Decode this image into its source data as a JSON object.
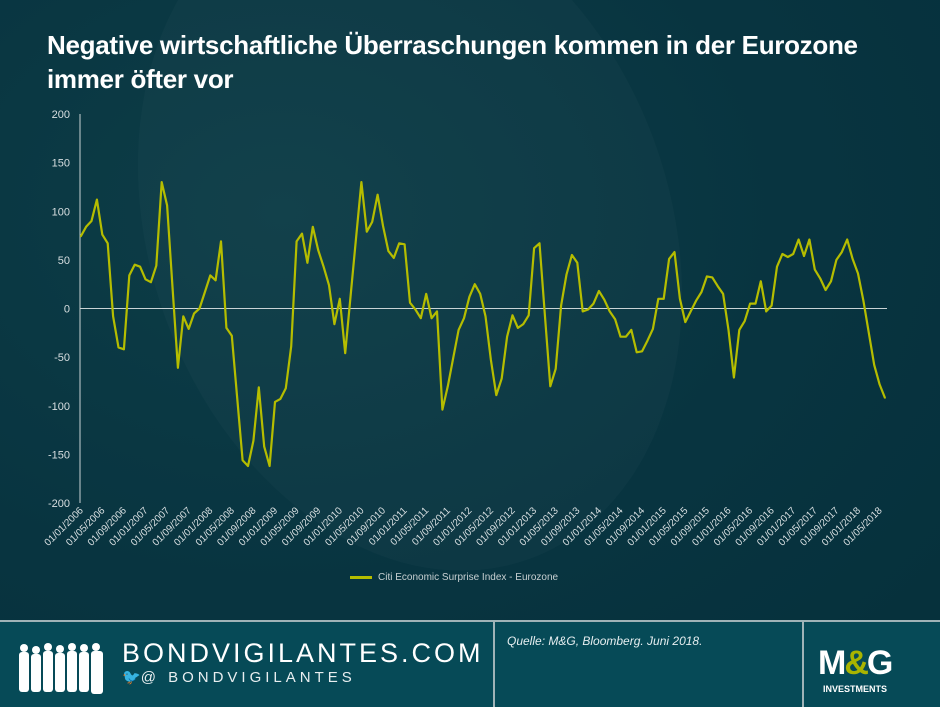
{
  "title": "Negative wirtschaftliche Überraschungen kommen in der Eurozone immer öfter vor",
  "chart_data": {
    "type": "line",
    "title": "Negative wirtschaftliche Überraschungen kommen in der Eurozone immer öfter vor",
    "xlabel": "",
    "ylabel": "",
    "ylim": [
      -200,
      200
    ],
    "y_ticks": [
      "200",
      "150",
      "100",
      "50",
      "0",
      "-50",
      "-100",
      "-150",
      "-200"
    ],
    "x_tick_labels": [
      "01/01/2006",
      "01/05/2006",
      "01/09/2006",
      "01/01/2007",
      "01/05/2007",
      "01/09/2007",
      "01/01/2008",
      "01/05/2008",
      "01/09/2008",
      "01/01/2009",
      "01/05/2009",
      "01/09/2009",
      "01/01/2010",
      "01/05/2010",
      "01/09/2010",
      "01/01/2011",
      "01/05/2011",
      "01/09/2011",
      "01/01/2012",
      "01/05/2012",
      "01/09/2012",
      "01/01/2013",
      "01/05/2013",
      "01/09/2013",
      "01/01/2014",
      "01/05/2014",
      "01/09/2014",
      "01/01/2015",
      "01/05/2015",
      "01/09/2015",
      "01/01/2016",
      "01/05/2016",
      "01/09/2016",
      "01/01/2017",
      "01/05/2017",
      "01/09/2017",
      "01/01/2018",
      "01/05/2018"
    ],
    "grid": false,
    "legend": "bottom",
    "line_color": "#b5bd00",
    "series": [
      {
        "name": "Citi Economic Surprise Index - Eurozone",
        "x": [
          "2006-01",
          "2006-02",
          "2006-03",
          "2006-04",
          "2006-05",
          "2006-06",
          "2006-07",
          "2006-08",
          "2006-09",
          "2006-10",
          "2006-11",
          "2006-12",
          "2007-01",
          "2007-02",
          "2007-03",
          "2007-04",
          "2007-05",
          "2007-06",
          "2007-07",
          "2007-08",
          "2007-09",
          "2007-10",
          "2007-11",
          "2007-12",
          "2008-01",
          "2008-02",
          "2008-03",
          "2008-04",
          "2008-05",
          "2008-06",
          "2008-07",
          "2008-08",
          "2008-09",
          "2008-10",
          "2008-11",
          "2008-12",
          "2009-01",
          "2009-02",
          "2009-03",
          "2009-04",
          "2009-05",
          "2009-06",
          "2009-07",
          "2009-08",
          "2009-09",
          "2009-10",
          "2009-11",
          "2009-12",
          "2010-01",
          "2010-02",
          "2010-03",
          "2010-04",
          "2010-05",
          "2010-06",
          "2010-07",
          "2010-08",
          "2010-09",
          "2010-10",
          "2010-11",
          "2010-12",
          "2011-01",
          "2011-02",
          "2011-03",
          "2011-04",
          "2011-05",
          "2011-06",
          "2011-07",
          "2011-08",
          "2011-09",
          "2011-10",
          "2011-11",
          "2011-12",
          "2012-01",
          "2012-02",
          "2012-03",
          "2012-04",
          "2012-05",
          "2012-06",
          "2012-07",
          "2012-08",
          "2012-09",
          "2012-10",
          "2012-11",
          "2012-12",
          "2013-01",
          "2013-02",
          "2013-03",
          "2013-04",
          "2013-05",
          "2013-06",
          "2013-07",
          "2013-08",
          "2013-09",
          "2013-10",
          "2013-11",
          "2013-12",
          "2014-01",
          "2014-02",
          "2014-03",
          "2014-04",
          "2014-05",
          "2014-06",
          "2014-07",
          "2014-08",
          "2014-09",
          "2014-10",
          "2014-11",
          "2014-12",
          "2015-01",
          "2015-02",
          "2015-03",
          "2015-04",
          "2015-05",
          "2015-06",
          "2015-07",
          "2015-08",
          "2015-09",
          "2015-10",
          "2015-11",
          "2015-12",
          "2016-01",
          "2016-02",
          "2016-03",
          "2016-04",
          "2016-05",
          "2016-06",
          "2016-07",
          "2016-08",
          "2016-09",
          "2016-10",
          "2016-11",
          "2016-12",
          "2017-01",
          "2017-02",
          "2017-03",
          "2017-04",
          "2017-05",
          "2017-06",
          "2017-07",
          "2017-08",
          "2017-09",
          "2017-10",
          "2017-11",
          "2017-12",
          "2018-01",
          "2018-02",
          "2018-03",
          "2018-04",
          "2018-05",
          "2018-06"
        ],
        "values": [
          74,
          84,
          90,
          112,
          76,
          67,
          -8,
          -40,
          -42,
          34,
          45,
          43,
          30,
          27,
          44,
          130,
          106,
          22,
          -61,
          -8,
          -21,
          -5,
          0,
          17,
          34,
          29,
          69,
          -20,
          -28,
          -92,
          -156,
          -162,
          -136,
          -81,
          -142,
          -162,
          -96,
          -93,
          -82,
          -39,
          69,
          77,
          47,
          84,
          60,
          43,
          24,
          -16,
          10,
          -46,
          13,
          72,
          130,
          79,
          89,
          117,
          85,
          59,
          52,
          67,
          66,
          6,
          -1,
          -10,
          15,
          -10,
          -3,
          -104,
          -80,
          -51,
          -22,
          -10,
          12,
          25,
          15,
          -8,
          -53,
          -89,
          -72,
          -29,
          -7,
          -20,
          -16,
          -7,
          62,
          67,
          -7,
          -80,
          -62,
          3,
          35,
          55,
          47,
          -3,
          -1,
          5,
          18,
          9,
          -3,
          -11,
          -29,
          -29,
          -22,
          -45,
          -44,
          -33,
          -21,
          10,
          10,
          51,
          58,
          10,
          -14,
          -3,
          8,
          17,
          33,
          32,
          23,
          15,
          -22,
          -71,
          -22,
          -13,
          5,
          5,
          28,
          -3,
          3,
          43,
          56,
          53,
          56,
          71,
          54,
          71,
          40,
          31,
          19,
          28,
          50,
          58,
          71,
          51,
          36,
          8,
          -25,
          -58,
          -78,
          -92
        ]
      }
    ]
  },
  "footer": {
    "site": "BONDVIGILANTES.COM",
    "handle": "@ BONDVIGILANTES",
    "source": "Quelle: M&G, Bloomberg. Juni 2018.",
    "logo_text": "M&G",
    "logo_sub": "INVESTMENTS"
  }
}
